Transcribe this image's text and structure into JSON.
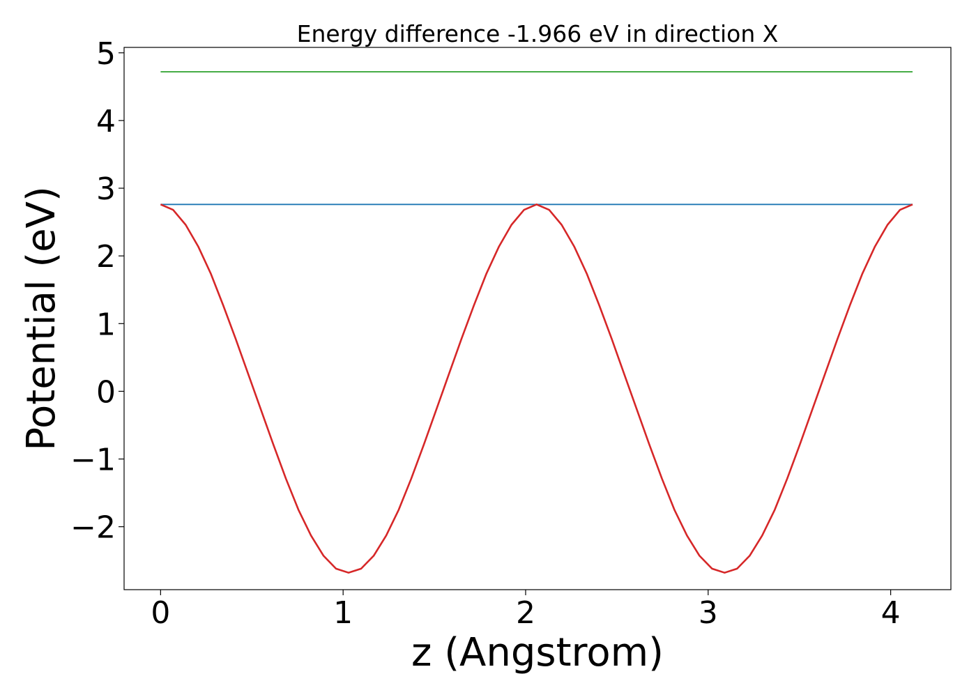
{
  "chart_data": {
    "type": "line",
    "title": "Energy difference -1.966 eV in direction X",
    "xlabel": "z (Angstrom)",
    "ylabel": "Potential (eV)",
    "xlim": [
      -0.2,
      4.33
    ],
    "ylim": [
      -2.93,
      5.08
    ],
    "xticks": [
      0,
      1,
      2,
      3,
      4
    ],
    "yticks": [
      -2,
      -1,
      0,
      1,
      2,
      3,
      4,
      5
    ],
    "xtick_labels": [
      "0",
      "1",
      "2",
      "3",
      "4"
    ],
    "ytick_labels": [
      "−2",
      "−1",
      "0",
      "1",
      "2",
      "3",
      "4",
      "5"
    ],
    "grid": false,
    "legend": "none",
    "series": [
      {
        "color": "#2ca02c",
        "x": [
          0,
          4.12
        ],
        "y": [
          4.72,
          4.72
        ]
      },
      {
        "color": "#1f77b4",
        "x": [
          0,
          4.12
        ],
        "y": [
          2.76,
          2.76
        ]
      },
      {
        "color": "#d62728",
        "x": [
          0,
          0.0687,
          0.1373,
          0.206,
          0.2747,
          0.3433,
          0.412,
          0.4807,
          0.5493,
          0.618,
          0.6867,
          0.7553,
          0.824,
          0.8927,
          0.9613,
          1.03,
          1.0987,
          1.1673,
          1.236,
          1.3047,
          1.3733,
          1.442,
          1.5107,
          1.5793,
          1.648,
          1.7167,
          1.7853,
          1.854,
          1.9227,
          1.9913,
          2.06,
          2.1287,
          2.1973,
          2.266,
          2.3347,
          2.4033,
          2.472,
          2.5407,
          2.6093,
          2.678,
          2.7467,
          2.8153,
          2.884,
          2.9527,
          3.0213,
          3.09,
          3.1587,
          3.2273,
          3.296,
          3.3647,
          3.4333,
          3.502,
          3.5707,
          3.6393,
          3.708,
          3.7767,
          3.8453,
          3.914,
          3.9827,
          4.0513,
          4.12
        ],
        "y": [
          2.76,
          2.68,
          2.46,
          2.14,
          1.74,
          1.27,
          0.77,
          0.25,
          -0.27,
          -0.79,
          -1.29,
          -1.75,
          -2.13,
          -2.43,
          -2.62,
          -2.68,
          -2.62,
          -2.43,
          -2.13,
          -1.75,
          -1.29,
          -0.79,
          -0.27,
          0.25,
          0.77,
          1.27,
          1.74,
          2.14,
          2.46,
          2.68,
          2.76,
          2.68,
          2.46,
          2.14,
          1.74,
          1.27,
          0.77,
          0.25,
          -0.27,
          -0.79,
          -1.29,
          -1.75,
          -2.13,
          -2.43,
          -2.62,
          -2.68,
          -2.62,
          -2.43,
          -2.13,
          -1.75,
          -1.29,
          -0.79,
          -0.27,
          0.25,
          0.77,
          1.27,
          1.74,
          2.14,
          2.46,
          2.68,
          2.76
        ]
      }
    ]
  }
}
